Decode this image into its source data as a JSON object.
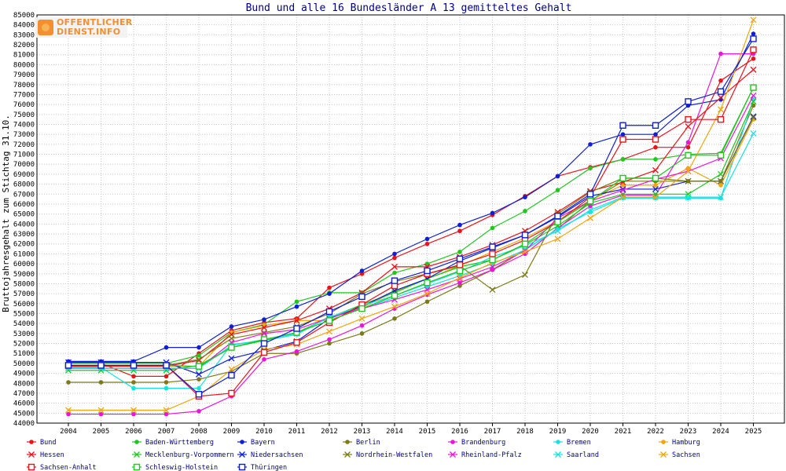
{
  "logo": {
    "line1": "OFFENTLICHER",
    "line2": "DIENST.INFO"
  },
  "chart_data": {
    "type": "line",
    "title": "Bund und alle 16 Bundesländer A 13 gemitteltes Gehalt",
    "xlabel": "",
    "ylabel": "Bruttojahresgehalt zum Stichtag 31.10.",
    "ylim": [
      44000,
      85000
    ],
    "y_step": 1000,
    "grid": true,
    "legend_position": "bottom",
    "categories": [
      "2004",
      "2005",
      "2006",
      "2007",
      "2008",
      "2009",
      "2010",
      "2011",
      "2012",
      "2013",
      "2014",
      "2015",
      "2016",
      "2017",
      "2018",
      "2019",
      "2020",
      "2021",
      "2022",
      "2023",
      "2024",
      "2025"
    ],
    "series": [
      {
        "name": "Bund",
        "color": "#e8141c",
        "marker": "dot",
        "values": [
          50000,
          50000,
          48700,
          48700,
          51000,
          53300,
          54100,
          54500,
          57600,
          59000,
          60600,
          62000,
          63300,
          64900,
          66800,
          68800,
          69700,
          70500,
          71700,
          71700,
          78400,
          80600
        ]
      },
      {
        "name": "Baden-Württemberg",
        "color": "#22c522",
        "marker": "dot",
        "values": [
          50000,
          50000,
          50000,
          50000,
          50800,
          53100,
          53900,
          56200,
          57100,
          57100,
          59100,
          60000,
          61200,
          63600,
          65300,
          67400,
          69600,
          70500,
          70500,
          71000,
          71100,
          77700
        ]
      },
      {
        "name": "Bayern",
        "color": "#0f1fd2",
        "marker": "dot",
        "values": [
          50200,
          50200,
          50200,
          51600,
          51600,
          53700,
          54400,
          55700,
          57000,
          59300,
          61000,
          62500,
          63900,
          65100,
          66700,
          68800,
          72000,
          73000,
          73000,
          75900,
          76500,
          83100
        ]
      },
      {
        "name": "Berlin",
        "color": "#7b7b19",
        "marker": "dot",
        "values": [
          48100,
          48100,
          48100,
          48100,
          48400,
          49200,
          51000,
          51000,
          52000,
          53000,
          54500,
          56200,
          57800,
          59400,
          61400,
          63500,
          66300,
          68300,
          68300,
          68300,
          68300,
          75900
        ]
      },
      {
        "name": "Brandenburg",
        "color": "#e817d7",
        "marker": "dot",
        "values": [
          44900,
          44900,
          44900,
          44900,
          45200,
          46700,
          50400,
          51200,
          52400,
          53800,
          55500,
          56900,
          58100,
          59400,
          61000,
          63600,
          65800,
          66900,
          66900,
          72200,
          81100,
          81100
        ]
      },
      {
        "name": "Bremen",
        "color": "#1ae0e0",
        "marker": "dot",
        "values": [
          49600,
          49600,
          47500,
          47500,
          47500,
          51900,
          52300,
          52900,
          54700,
          55500,
          56600,
          57700,
          58800,
          60000,
          61400,
          63500,
          65200,
          66600,
          66600,
          66600,
          66600,
          76500
        ]
      },
      {
        "name": "Hamburg",
        "color": "#f0a60e",
        "marker": "dot",
        "values": [
          49700,
          49700,
          49700,
          49700,
          49700,
          53100,
          53800,
          54300,
          54300,
          55600,
          57200,
          58500,
          59800,
          61200,
          62600,
          64300,
          66400,
          67900,
          67900,
          69600,
          67900,
          74500
        ]
      },
      {
        "name": "Hessen",
        "color": "#e8141c",
        "marker": "x",
        "values": [
          49700,
          49700,
          49700,
          49700,
          50300,
          52900,
          53600,
          54300,
          55500,
          57100,
          59700,
          59700,
          60700,
          61900,
          63300,
          65200,
          67300,
          68200,
          69400,
          73800,
          76700,
          79500
        ]
      },
      {
        "name": "Mecklenburg-Vorpommern",
        "color": "#22c522",
        "marker": "x",
        "values": [
          49300,
          49300,
          49300,
          49300,
          49800,
          51600,
          52300,
          53100,
          54600,
          55900,
          57100,
          58500,
          59700,
          60400,
          61900,
          63800,
          66100,
          67000,
          67000,
          67000,
          69000,
          76300
        ]
      },
      {
        "name": "Niedersachsen",
        "color": "#0f1fd2",
        "marker": "x",
        "values": [
          50100,
          50100,
          50100,
          50100,
          48900,
          50500,
          51300,
          52200,
          54500,
          55700,
          57300,
          58500,
          60300,
          61600,
          62900,
          64700,
          66800,
          67500,
          67500,
          68300,
          68300,
          74800
        ]
      },
      {
        "name": "Nordrhein-Westfalen",
        "color": "#7b7b19",
        "marker": "x",
        "values": [
          49800,
          49800,
          49800,
          49800,
          50400,
          52500,
          53100,
          53700,
          55000,
          57000,
          58200,
          59000,
          59800,
          57400,
          58900,
          65000,
          67200,
          68600,
          68600,
          68300,
          68300,
          74700
        ]
      },
      {
        "name": "Rheinland-Pfalz",
        "color": "#e817d7",
        "marker": "x",
        "values": [
          49500,
          49500,
          49500,
          49500,
          49500,
          52100,
          53000,
          53400,
          54600,
          55500,
          56400,
          57400,
          58500,
          59700,
          61300,
          64600,
          66300,
          67400,
          68500,
          69300,
          70600,
          76900
        ]
      },
      {
        "name": "Saarland",
        "color": "#1ae0e0",
        "marker": "x",
        "values": [
          49500,
          49500,
          49500,
          49500,
          49500,
          51800,
          52400,
          53000,
          54600,
          55800,
          56800,
          58000,
          59200,
          60700,
          61800,
          63300,
          65400,
          66700,
          66700,
          66700,
          66700,
          73100
        ]
      },
      {
        "name": "Sachsen",
        "color": "#f0a60e",
        "marker": "x",
        "values": [
          45300,
          45300,
          45300,
          45300,
          46700,
          49400,
          51400,
          51900,
          53200,
          54500,
          55700,
          57000,
          58600,
          60100,
          61200,
          62500,
          64600,
          66700,
          66700,
          69300,
          75500,
          84500
        ]
      },
      {
        "name": "Sachsen-Anhalt",
        "color": "#e8141c",
        "marker": "square",
        "values": [
          49800,
          49800,
          49800,
          49800,
          46700,
          47000,
          51100,
          52100,
          54100,
          55900,
          57800,
          59000,
          59900,
          61000,
          62400,
          64200,
          66700,
          72500,
          72500,
          74500,
          74500,
          81500
        ]
      },
      {
        "name": "Schleswig-Holstein",
        "color": "#22c522",
        "marker": "square",
        "values": [
          49800,
          49800,
          49800,
          49800,
          49700,
          51600,
          52400,
          53100,
          54300,
          55500,
          56800,
          58100,
          59300,
          60400,
          62000,
          64200,
          66300,
          68600,
          68600,
          70900,
          70900,
          77700
        ]
      },
      {
        "name": "Thüringen",
        "color": "#0f1fd2",
        "marker": "square",
        "values": [
          49800,
          49800,
          49800,
          49800,
          46900,
          48800,
          52000,
          53500,
          55200,
          56700,
          58300,
          59300,
          60500,
          61700,
          62900,
          64800,
          67000,
          73900,
          73900,
          76300,
          77300,
          82600
        ]
      }
    ]
  }
}
